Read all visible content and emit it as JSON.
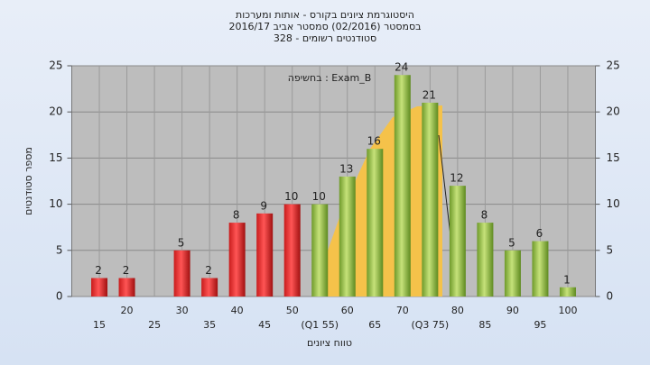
{
  "chart_data": {
    "type": "bar",
    "title": [
      "היסטוגרמת ציונים בקורס - אותות ומערכות",
      "בסמסטר  (02/2016)  סמסטר אביב 2016/17",
      "סטודנטים רשומים - 328"
    ],
    "annotation": "בחשיפה : Exam_B",
    "x_label": "טווח ציונים",
    "y_label": "מספר סטודנטים",
    "categories": [
      "15",
      "20",
      "25",
      "30",
      "35",
      "40",
      "45",
      "50",
      "(Q1 55)",
      "60",
      "65",
      "70",
      "(Q3 75)",
      "80",
      "85",
      "90",
      "95",
      "100"
    ],
    "values": [
      2,
      2,
      null,
      5,
      2,
      8,
      9,
      10,
      10,
      13,
      16,
      24,
      21,
      12,
      8,
      5,
      6,
      1
    ],
    "colors": [
      "red",
      "red",
      "red",
      "red",
      "red",
      "red",
      "red",
      "red",
      "green",
      "green",
      "green",
      "green",
      "green",
      "green",
      "green",
      "green",
      "green",
      "green"
    ],
    "ylim": [
      0,
      25
    ],
    "yticks": [
      0,
      5,
      10,
      15,
      20,
      25
    ],
    "y2lim": [
      0,
      25
    ],
    "y2ticks": [
      0,
      5,
      10,
      15,
      20,
      25
    ],
    "grid": true
  }
}
